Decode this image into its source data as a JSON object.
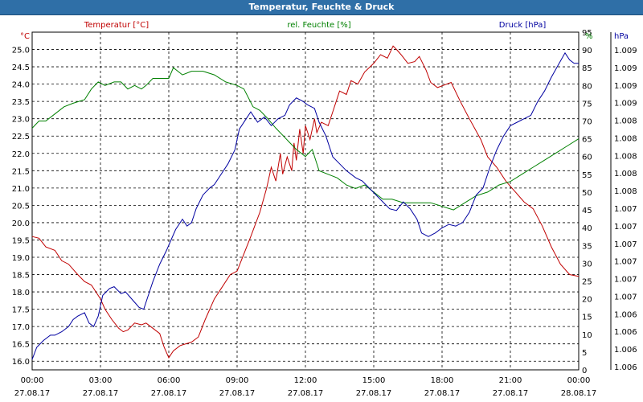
{
  "window": {
    "title": "Temperatur, Feuchte & Druck"
  },
  "chart_data": {
    "type": "line",
    "title": "Temperatur, Feuchte & Druck",
    "grid": true,
    "x": {
      "ticks": [
        {
          "time": "00:00",
          "date": "27.08.17"
        },
        {
          "time": "03:00",
          "date": "27.08.17"
        },
        {
          "time": "06:00",
          "date": "27.08.17"
        },
        {
          "time": "09:00",
          "date": "27.08.17"
        },
        {
          "time": "12:00",
          "date": "27.08.17"
        },
        {
          "time": "15:00",
          "date": "27.08.17"
        },
        {
          "time": "18:00",
          "date": "27.08.17"
        },
        {
          "time": "21:00",
          "date": "27.08.17"
        },
        {
          "time": "00:00",
          "date": "28.08.17"
        }
      ]
    },
    "axes": {
      "left": {
        "label": "Temperatur [°C]",
        "unit": "°C",
        "color": "#c00000",
        "min": 15.75,
        "max": 25.5,
        "ticks": [
          "16.0",
          "16.5",
          "17.0",
          "17.5",
          "18.0",
          "18.5",
          "19.0",
          "19.5",
          "20.0",
          "20.5",
          "21.0",
          "21.5",
          "22.0",
          "22.5",
          "23.0",
          "23.5",
          "24.0",
          "24.5",
          "25.0"
        ]
      },
      "mid": {
        "label": "rel. Feuchte [%]",
        "unit": "%",
        "color": "#008000",
        "min": 0,
        "max": 95,
        "ticks": [
          "0",
          "5",
          "10",
          "15",
          "20",
          "25",
          "30",
          "35",
          "40",
          "45",
          "50",
          "55",
          "60",
          "65",
          "70",
          "75",
          "80",
          "85",
          "90",
          "95"
        ]
      },
      "right": {
        "label": "Druck [hPa]",
        "unit": "hPa",
        "color": "#0000a0",
        "ticks": [
          "1.006",
          "1.006",
          "1.006",
          "1.006",
          "1.007",
          "1.007",
          "1.007",
          "1.007",
          "1.007",
          "1.007",
          "1.008",
          "1.008",
          "1.008",
          "1.008",
          "1.008",
          "1.009",
          "1.009",
          "1.009",
          "1.009"
        ]
      }
    },
    "series": [
      {
        "name": "Temperatur [°C]",
        "color": "#c00000",
        "axis": "left",
        "points": [
          [
            0,
            19.6
          ],
          [
            0.3,
            19.55
          ],
          [
            0.6,
            19.3
          ],
          [
            1,
            19.2
          ],
          [
            1.3,
            18.9
          ],
          [
            1.6,
            18.8
          ],
          [
            2,
            18.5
          ],
          [
            2.3,
            18.3
          ],
          [
            2.6,
            18.2
          ],
          [
            3,
            17.8
          ],
          [
            3.2,
            17.5
          ],
          [
            3.5,
            17.2
          ],
          [
            3.8,
            16.95
          ],
          [
            4,
            16.85
          ],
          [
            4.2,
            16.9
          ],
          [
            4.5,
            17.1
          ],
          [
            4.8,
            17.05
          ],
          [
            5,
            17.1
          ],
          [
            5.3,
            16.95
          ],
          [
            5.6,
            16.8
          ],
          [
            5.8,
            16.4
          ],
          [
            6,
            16.1
          ],
          [
            6.2,
            16.3
          ],
          [
            6.5,
            16.45
          ],
          [
            7,
            16.55
          ],
          [
            7.3,
            16.7
          ],
          [
            7.6,
            17.2
          ],
          [
            8,
            17.8
          ],
          [
            8.3,
            18.1
          ],
          [
            8.7,
            18.5
          ],
          [
            9,
            18.6
          ],
          [
            9.3,
            19.1
          ],
          [
            9.6,
            19.6
          ],
          [
            10,
            20.3
          ],
          [
            10.3,
            21.0
          ],
          [
            10.5,
            21.6
          ],
          [
            10.7,
            21.2
          ],
          [
            10.9,
            22.0
          ],
          [
            11,
            21.4
          ],
          [
            11.2,
            21.9
          ],
          [
            11.4,
            21.5
          ],
          [
            11.5,
            22.3
          ],
          [
            11.6,
            21.8
          ],
          [
            11.75,
            22.7
          ],
          [
            11.9,
            22.0
          ],
          [
            12,
            22.8
          ],
          [
            12.2,
            22.4
          ],
          [
            12.4,
            23.0
          ],
          [
            12.5,
            22.6
          ],
          [
            12.7,
            22.9
          ],
          [
            13,
            22.8
          ],
          [
            13.2,
            23.2
          ],
          [
            13.5,
            23.8
          ],
          [
            13.8,
            23.7
          ],
          [
            14,
            24.1
          ],
          [
            14.3,
            24.0
          ],
          [
            14.6,
            24.35
          ],
          [
            15,
            24.6
          ],
          [
            15.3,
            24.85
          ],
          [
            15.6,
            24.75
          ],
          [
            15.85,
            25.1
          ],
          [
            16,
            25.0
          ],
          [
            16.2,
            24.85
          ],
          [
            16.5,
            24.6
          ],
          [
            16.8,
            24.65
          ],
          [
            17,
            24.8
          ],
          [
            17.3,
            24.4
          ],
          [
            17.5,
            24.05
          ],
          [
            17.8,
            23.9
          ],
          [
            18,
            23.95
          ],
          [
            18.4,
            24.05
          ],
          [
            18.8,
            23.5
          ],
          [
            19.2,
            23.0
          ],
          [
            19.7,
            22.4
          ],
          [
            20,
            21.9
          ],
          [
            20.4,
            21.6
          ],
          [
            20.8,
            21.2
          ],
          [
            21.2,
            20.9
          ],
          [
            21.6,
            20.6
          ],
          [
            22,
            20.4
          ],
          [
            22.4,
            19.9
          ],
          [
            22.8,
            19.3
          ],
          [
            23.2,
            18.8
          ],
          [
            23.6,
            18.5
          ],
          [
            24,
            18.45
          ]
        ]
      },
      {
        "name": "rel. Feuchte [%]",
        "color": "#008000",
        "axis": "mid",
        "points": [
          [
            0,
            68
          ],
          [
            0.3,
            70
          ],
          [
            0.6,
            70
          ],
          [
            1,
            72
          ],
          [
            1.4,
            74
          ],
          [
            1.8,
            75
          ],
          [
            2.3,
            76
          ],
          [
            2.6,
            79
          ],
          [
            2.9,
            81
          ],
          [
            3.2,
            80
          ],
          [
            3.6,
            81
          ],
          [
            3.9,
            81
          ],
          [
            4.2,
            79
          ],
          [
            4.5,
            80
          ],
          [
            4.8,
            79
          ],
          [
            5,
            80
          ],
          [
            5.3,
            82
          ],
          [
            5.6,
            82
          ],
          [
            6,
            82
          ],
          [
            6.2,
            85
          ],
          [
            6.6,
            83
          ],
          [
            7,
            84
          ],
          [
            7.5,
            84
          ],
          [
            8,
            83
          ],
          [
            8.5,
            81
          ],
          [
            9,
            80
          ],
          [
            9.3,
            79
          ],
          [
            9.7,
            74
          ],
          [
            10,
            73
          ],
          [
            10.3,
            71
          ],
          [
            10.7,
            68
          ],
          [
            11,
            66
          ],
          [
            11.3,
            64
          ],
          [
            11.6,
            62
          ],
          [
            12,
            60
          ],
          [
            12.3,
            62
          ],
          [
            12.6,
            56
          ],
          [
            13,
            55
          ],
          [
            13.4,
            54
          ],
          [
            13.8,
            52
          ],
          [
            14.2,
            51
          ],
          [
            14.6,
            52
          ],
          [
            15,
            50
          ],
          [
            15.4,
            48
          ],
          [
            15.8,
            48
          ],
          [
            16.3,
            47
          ],
          [
            16.7,
            47
          ],
          [
            17,
            47
          ],
          [
            17.5,
            47
          ],
          [
            18,
            46
          ],
          [
            18.5,
            45
          ],
          [
            19,
            47
          ],
          [
            19.5,
            49
          ],
          [
            20,
            50
          ],
          [
            20.5,
            52
          ],
          [
            21,
            53
          ],
          [
            21.5,
            55
          ],
          [
            22,
            57
          ],
          [
            22.5,
            59
          ],
          [
            23,
            61
          ],
          [
            23.5,
            63
          ],
          [
            24,
            65
          ]
        ]
      },
      {
        "name": "Druck [hPa]",
        "color": "#0000a0",
        "axis": "right",
        "points": [
          [
            0,
            16.05
          ],
          [
            0.2,
            16.4
          ],
          [
            0.5,
            16.6
          ],
          [
            0.8,
            16.75
          ],
          [
            1,
            16.75
          ],
          [
            1.3,
            16.85
          ],
          [
            1.6,
            17.0
          ],
          [
            1.8,
            17.2
          ],
          [
            2,
            17.3
          ],
          [
            2.3,
            17.4
          ],
          [
            2.5,
            17.1
          ],
          [
            2.7,
            17.0
          ],
          [
            2.9,
            17.3
          ],
          [
            3,
            17.6
          ],
          [
            3.1,
            17.9
          ],
          [
            3.4,
            18.1
          ],
          [
            3.6,
            18.15
          ],
          [
            3.9,
            17.95
          ],
          [
            4.1,
            18.0
          ],
          [
            4.3,
            17.85
          ],
          [
            4.5,
            17.7
          ],
          [
            4.7,
            17.55
          ],
          [
            4.9,
            17.5
          ],
          [
            5.1,
            17.9
          ],
          [
            5.3,
            18.3
          ],
          [
            5.6,
            18.8
          ],
          [
            5.9,
            19.2
          ],
          [
            6.1,
            19.5
          ],
          [
            6.3,
            19.8
          ],
          [
            6.6,
            20.1
          ],
          [
            6.8,
            19.9
          ],
          [
            7,
            20.0
          ],
          [
            7.2,
            20.4
          ],
          [
            7.5,
            20.8
          ],
          [
            7.8,
            21.0
          ],
          [
            8,
            21.1
          ],
          [
            8.3,
            21.4
          ],
          [
            8.6,
            21.7
          ],
          [
            8.9,
            22.1
          ],
          [
            9.1,
            22.7
          ],
          [
            9.4,
            23.0
          ],
          [
            9.6,
            23.2
          ],
          [
            9.9,
            22.9
          ],
          [
            10.2,
            23.05
          ],
          [
            10.5,
            22.8
          ],
          [
            10.8,
            23.0
          ],
          [
            11.1,
            23.1
          ],
          [
            11.3,
            23.4
          ],
          [
            11.6,
            23.6
          ],
          [
            11.9,
            23.5
          ],
          [
            12.1,
            23.4
          ],
          [
            12.4,
            23.3
          ],
          [
            12.6,
            22.9
          ],
          [
            12.9,
            22.5
          ],
          [
            13.2,
            21.9
          ],
          [
            13.5,
            21.7
          ],
          [
            13.8,
            21.5
          ],
          [
            14.2,
            21.3
          ],
          [
            14.5,
            21.2
          ],
          [
            14.8,
            21.0
          ],
          [
            15.1,
            20.8
          ],
          [
            15.4,
            20.6
          ],
          [
            15.7,
            20.4
          ],
          [
            16,
            20.35
          ],
          [
            16.3,
            20.6
          ],
          [
            16.6,
            20.4
          ],
          [
            16.9,
            20.1
          ],
          [
            17.1,
            19.7
          ],
          [
            17.4,
            19.6
          ],
          [
            17.7,
            19.7
          ],
          [
            18,
            19.85
          ],
          [
            18.3,
            19.95
          ],
          [
            18.6,
            19.9
          ],
          [
            18.9,
            20.0
          ],
          [
            19.2,
            20.3
          ],
          [
            19.5,
            20.8
          ],
          [
            19.8,
            21.0
          ],
          [
            20.1,
            21.6
          ],
          [
            20.4,
            22.1
          ],
          [
            20.7,
            22.5
          ],
          [
            21,
            22.8
          ],
          [
            21.3,
            22.9
          ],
          [
            21.6,
            23.0
          ],
          [
            21.9,
            23.1
          ],
          [
            22.2,
            23.5
          ],
          [
            22.5,
            23.8
          ],
          [
            22.8,
            24.2
          ],
          [
            23.1,
            24.55
          ],
          [
            23.4,
            24.9
          ],
          [
            23.6,
            24.7
          ],
          [
            23.8,
            24.6
          ],
          [
            24,
            24.6
          ]
        ]
      }
    ]
  }
}
